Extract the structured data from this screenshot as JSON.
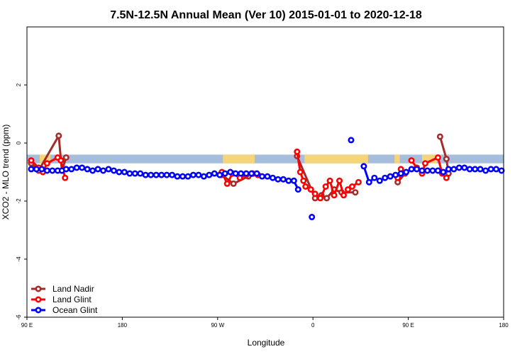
{
  "chart_data": {
    "type": "line",
    "title": "7.5N-12.5N Annual Mean (Ver 10)   2015-01-01 to 2020-12-18",
    "xlabel": "Longitude",
    "ylabel": "XCO2 - MLO trend (ppm)",
    "xlim": [
      0,
      450
    ],
    "ylim": [
      -6,
      4
    ],
    "x_ticks": [
      {
        "x": 0,
        "label": "90 E"
      },
      {
        "x": 90,
        "label": "180"
      },
      {
        "x": 180,
        "label": "90 W"
      },
      {
        "x": 270,
        "label": "0"
      },
      {
        "x": 360,
        "label": "90 E"
      },
      {
        "x": 450,
        "label": "180"
      }
    ],
    "y_ticks": [
      -6,
      -4,
      -2,
      0,
      2
    ],
    "legend_position": "bottom-left",
    "reference_band": {
      "y_low": -0.7,
      "y_high": -0.4,
      "color": "#a6bddb"
    },
    "land_fill_color": "#f5d57a",
    "land_segments": [
      [
        12,
        22
      ],
      [
        185,
        215
      ],
      [
        262,
        322
      ],
      [
        347,
        352
      ],
      [
        373,
        387
      ]
    ],
    "series": [
      {
        "name": "Land Nadir",
        "color": "#a52a2a",
        "segments": [
          [
            [
              4,
              -0.7
            ],
            [
              11,
              -0.95
            ],
            [
              30,
              0.25
            ],
            [
              33,
              -0.95
            ],
            [
              37,
              -0.5
            ]
          ],
          [
            [
              184,
              -1.1
            ],
            [
              195,
              -1.4
            ],
            [
              209,
              -1.15
            ],
            [
              218,
              -1.1
            ]
          ],
          [
            [
              255,
              -0.45
            ],
            [
              272,
              -1.9
            ],
            [
              278,
              -1.8
            ],
            [
              283,
              -1.9
            ],
            [
              290,
              -1.6
            ],
            [
              297,
              -1.7
            ],
            [
              310,
              -1.7
            ]
          ],
          [
            [
              350,
              -1.35
            ],
            [
              357,
              -1.05
            ]
          ],
          [
            [
              390,
              0.22
            ],
            [
              396,
              -0.55
            ],
            [
              398,
              -1.05
            ]
          ]
        ]
      },
      {
        "name": "Land Glint",
        "color": "#ff0000",
        "segments": [
          [
            [
              4,
              -0.6
            ],
            [
              11,
              -0.85
            ],
            [
              15,
              -1.0
            ],
            [
              19,
              -0.7
            ],
            [
              29,
              -0.5
            ],
            [
              32,
              -0.6
            ],
            [
              36,
              -1.2
            ]
          ],
          [
            [
              184,
              -1.0
            ],
            [
              189,
              -1.4
            ],
            [
              194,
              -1.05
            ],
            [
              201,
              -1.2
            ],
            [
              207,
              -1.1
            ],
            [
              213,
              -1.05
            ],
            [
              218,
              -1.1
            ]
          ],
          [
            [
              255,
              -0.3
            ],
            [
              258,
              -1.0
            ],
            [
              261,
              -1.3
            ],
            [
              263,
              -1.5
            ],
            [
              268,
              -1.6
            ],
            [
              272,
              -1.75
            ],
            [
              277,
              -1.9
            ],
            [
              282,
              -1.5
            ],
            [
              286,
              -1.3
            ],
            [
              290,
              -1.8
            ],
            [
              295,
              -1.3
            ],
            [
              299,
              -1.8
            ],
            [
              303,
              -1.6
            ],
            [
              307,
              -1.5
            ],
            [
              313,
              -1.35
            ]
          ],
          [
            [
              350,
              -1.2
            ],
            [
              353,
              -0.9
            ]
          ],
          [
            [
              363,
              -0.6
            ],
            [
              368,
              -0.85
            ],
            [
              373,
              -1.05
            ],
            [
              376,
              -0.7
            ],
            [
              388,
              -0.5
            ],
            [
              392,
              -1.05
            ],
            [
              396,
              -1.2
            ]
          ]
        ]
      },
      {
        "name": "Ocean Glint",
        "color": "#0000ff",
        "segments": [
          [
            [
              4,
              -0.9
            ],
            [
              9,
              -0.9
            ],
            [
              14,
              -0.9
            ],
            [
              19,
              -0.95
            ],
            [
              24,
              -0.95
            ],
            [
              29,
              -0.95
            ],
            [
              33,
              -0.95
            ],
            [
              37,
              -0.9
            ],
            [
              42,
              -0.9
            ],
            [
              47,
              -0.85
            ],
            [
              52,
              -0.85
            ],
            [
              57,
              -0.9
            ],
            [
              62,
              -0.95
            ],
            [
              67,
              -0.9
            ],
            [
              72,
              -0.95
            ],
            [
              77,
              -0.9
            ],
            [
              82,
              -0.95
            ],
            [
              87,
              -1.0
            ],
            [
              92,
              -1.0
            ],
            [
              97,
              -1.05
            ],
            [
              102,
              -1.05
            ],
            [
              107,
              -1.05
            ],
            [
              112,
              -1.1
            ],
            [
              117,
              -1.1
            ],
            [
              122,
              -1.1
            ],
            [
              127,
              -1.1
            ],
            [
              132,
              -1.1
            ],
            [
              137,
              -1.1
            ],
            [
              142,
              -1.15
            ],
            [
              147,
              -1.15
            ],
            [
              152,
              -1.15
            ],
            [
              157,
              -1.1
            ],
            [
              162,
              -1.1
            ],
            [
              167,
              -1.15
            ],
            [
              172,
              -1.1
            ],
            [
              177,
              -1.05
            ],
            [
              182,
              -1.1
            ],
            [
              187,
              -1.05
            ],
            [
              192,
              -1.0
            ],
            [
              197,
              -1.05
            ],
            [
              202,
              -1.05
            ],
            [
              207,
              -1.05
            ],
            [
              212,
              -1.05
            ],
            [
              217,
              -1.05
            ],
            [
              222,
              -1.15
            ],
            [
              227,
              -1.15
            ],
            [
              232,
              -1.2
            ],
            [
              237,
              -1.25
            ],
            [
              242,
              -1.25
            ],
            [
              247,
              -1.3
            ],
            [
              252,
              -1.3
            ],
            [
              256,
              -1.6
            ]
          ],
          [
            [
              269,
              -2.55
            ]
          ],
          [
            [
              306,
              0.1
            ]
          ],
          [
            [
              318,
              -0.8
            ],
            [
              323,
              -1.35
            ],
            [
              328,
              -1.2
            ],
            [
              333,
              -1.3
            ],
            [
              338,
              -1.2
            ],
            [
              343,
              -1.15
            ],
            [
              348,
              -1.1
            ],
            [
              353,
              -1.05
            ],
            [
              358,
              -1.0
            ],
            [
              363,
              -0.9
            ],
            [
              368,
              -0.9
            ],
            [
              373,
              -0.95
            ],
            [
              378,
              -0.95
            ],
            [
              383,
              -0.95
            ],
            [
              388,
              -0.95
            ],
            [
              393,
              -1.0
            ],
            [
              398,
              -0.9
            ],
            [
              403,
              -0.9
            ],
            [
              408,
              -0.85
            ],
            [
              413,
              -0.85
            ],
            [
              418,
              -0.9
            ],
            [
              423,
              -0.9
            ],
            [
              428,
              -0.9
            ],
            [
              433,
              -0.95
            ],
            [
              438,
              -0.9
            ],
            [
              443,
              -0.9
            ],
            [
              448,
              -0.95
            ]
          ]
        ]
      }
    ]
  }
}
